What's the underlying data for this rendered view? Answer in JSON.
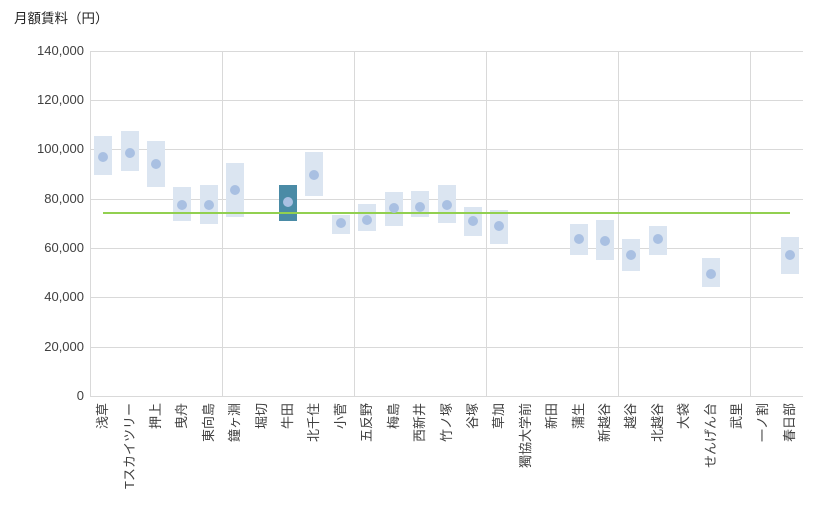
{
  "chart_data": {
    "type": "bar",
    "subtype": "floating-range-bars-with-mean-dots",
    "title": "月額賃料（円）",
    "xlabel": "",
    "ylabel": "月額賃料（円）",
    "ylim": [
      0,
      140000
    ],
    "ytick_interval": 20000,
    "yticklabels": [
      "0",
      "20,000",
      "40,000",
      "60,000",
      "80,000",
      "100,000",
      "120,000",
      "140,000"
    ],
    "grid": {
      "horizontal": true,
      "vertical_every_n_categories": 5
    },
    "legend": "none",
    "highlight_category": "牛田",
    "average_line": {
      "value": 74300,
      "spans": "first-to-last-category-center"
    },
    "categories": [
      "浅草",
      "Tスカイツリー",
      "押上",
      "曳舟",
      "東向島",
      "鐘ヶ淵",
      "堀切",
      "牛田",
      "北千住",
      "小菅",
      "五反野",
      "梅島",
      "西新井",
      "竹ノ塚",
      "谷塚",
      "草加",
      "獨協大学前",
      "新田",
      "蒲生",
      "新越谷",
      "越谷",
      "北越谷",
      "大袋",
      "せんげん台",
      "武里",
      "一ノ割",
      "春日部"
    ],
    "points": [
      {
        "label": "浅草",
        "low": 89500,
        "high": 105500,
        "mean": 97000
      },
      {
        "label": "Tスカイツリー",
        "low": 91000,
        "high": 107500,
        "mean": 98500
      },
      {
        "label": "押上",
        "low": 84500,
        "high": 103500,
        "mean": 94000
      },
      {
        "label": "曳舟",
        "low": 71000,
        "high": 84500,
        "mean": 77500
      },
      {
        "label": "東向島",
        "low": 69500,
        "high": 85500,
        "mean": 77500
      },
      {
        "label": "鐘ヶ淵",
        "low": 72500,
        "high": 94500,
        "mean": 83500
      },
      {
        "label": "堀切",
        "low": null,
        "high": null,
        "mean": null
      },
      {
        "label": "牛田",
        "low": 71000,
        "high": 85500,
        "mean": 78500
      },
      {
        "label": "北千住",
        "low": 81000,
        "high": 99000,
        "mean": 89500
      },
      {
        "label": "小菅",
        "low": 65500,
        "high": 73500,
        "mean": 70000
      },
      {
        "label": "五反野",
        "low": 67000,
        "high": 78000,
        "mean": 71500
      },
      {
        "label": "梅島",
        "low": 69000,
        "high": 82500,
        "mean": 76000
      },
      {
        "label": "西新井",
        "low": 72500,
        "high": 83000,
        "mean": 76500
      },
      {
        "label": "竹ノ塚",
        "low": 70000,
        "high": 85500,
        "mean": 77500
      },
      {
        "label": "谷塚",
        "low": 65000,
        "high": 76500,
        "mean": 71000
      },
      {
        "label": "草加",
        "low": 61500,
        "high": 75500,
        "mean": 69000
      },
      {
        "label": "獨協大学前",
        "low": null,
        "high": null,
        "mean": null
      },
      {
        "label": "新田",
        "low": null,
        "high": null,
        "mean": null
      },
      {
        "label": "蒲生",
        "low": 57000,
        "high": 69500,
        "mean": 63500
      },
      {
        "label": "新越谷",
        "low": 55000,
        "high": 71500,
        "mean": 63000
      },
      {
        "label": "越谷",
        "low": 50500,
        "high": 63500,
        "mean": 57000
      },
      {
        "label": "北越谷",
        "low": 57000,
        "high": 69000,
        "mean": 63500
      },
      {
        "label": "大袋",
        "low": null,
        "high": null,
        "mean": null
      },
      {
        "label": "せんげん台",
        "low": 44000,
        "high": 56000,
        "mean": 49500
      },
      {
        "label": "武里",
        "low": null,
        "high": null,
        "mean": null
      },
      {
        "label": "一ノ割",
        "low": null,
        "high": null,
        "mean": null
      },
      {
        "label": "春日部",
        "low": 49500,
        "high": 64500,
        "mean": 57000
      }
    ]
  },
  "colors": {
    "range_box_fill": "#dbe5f1",
    "range_box_highlight_fill": "#4a8ba6",
    "mean_dot_fill": "#a9c0e2",
    "average_line": "#92d050",
    "gridline": "#d9d9d9",
    "axis_text": "#404040",
    "title_text": "#262626",
    "background": "#ffffff"
  }
}
